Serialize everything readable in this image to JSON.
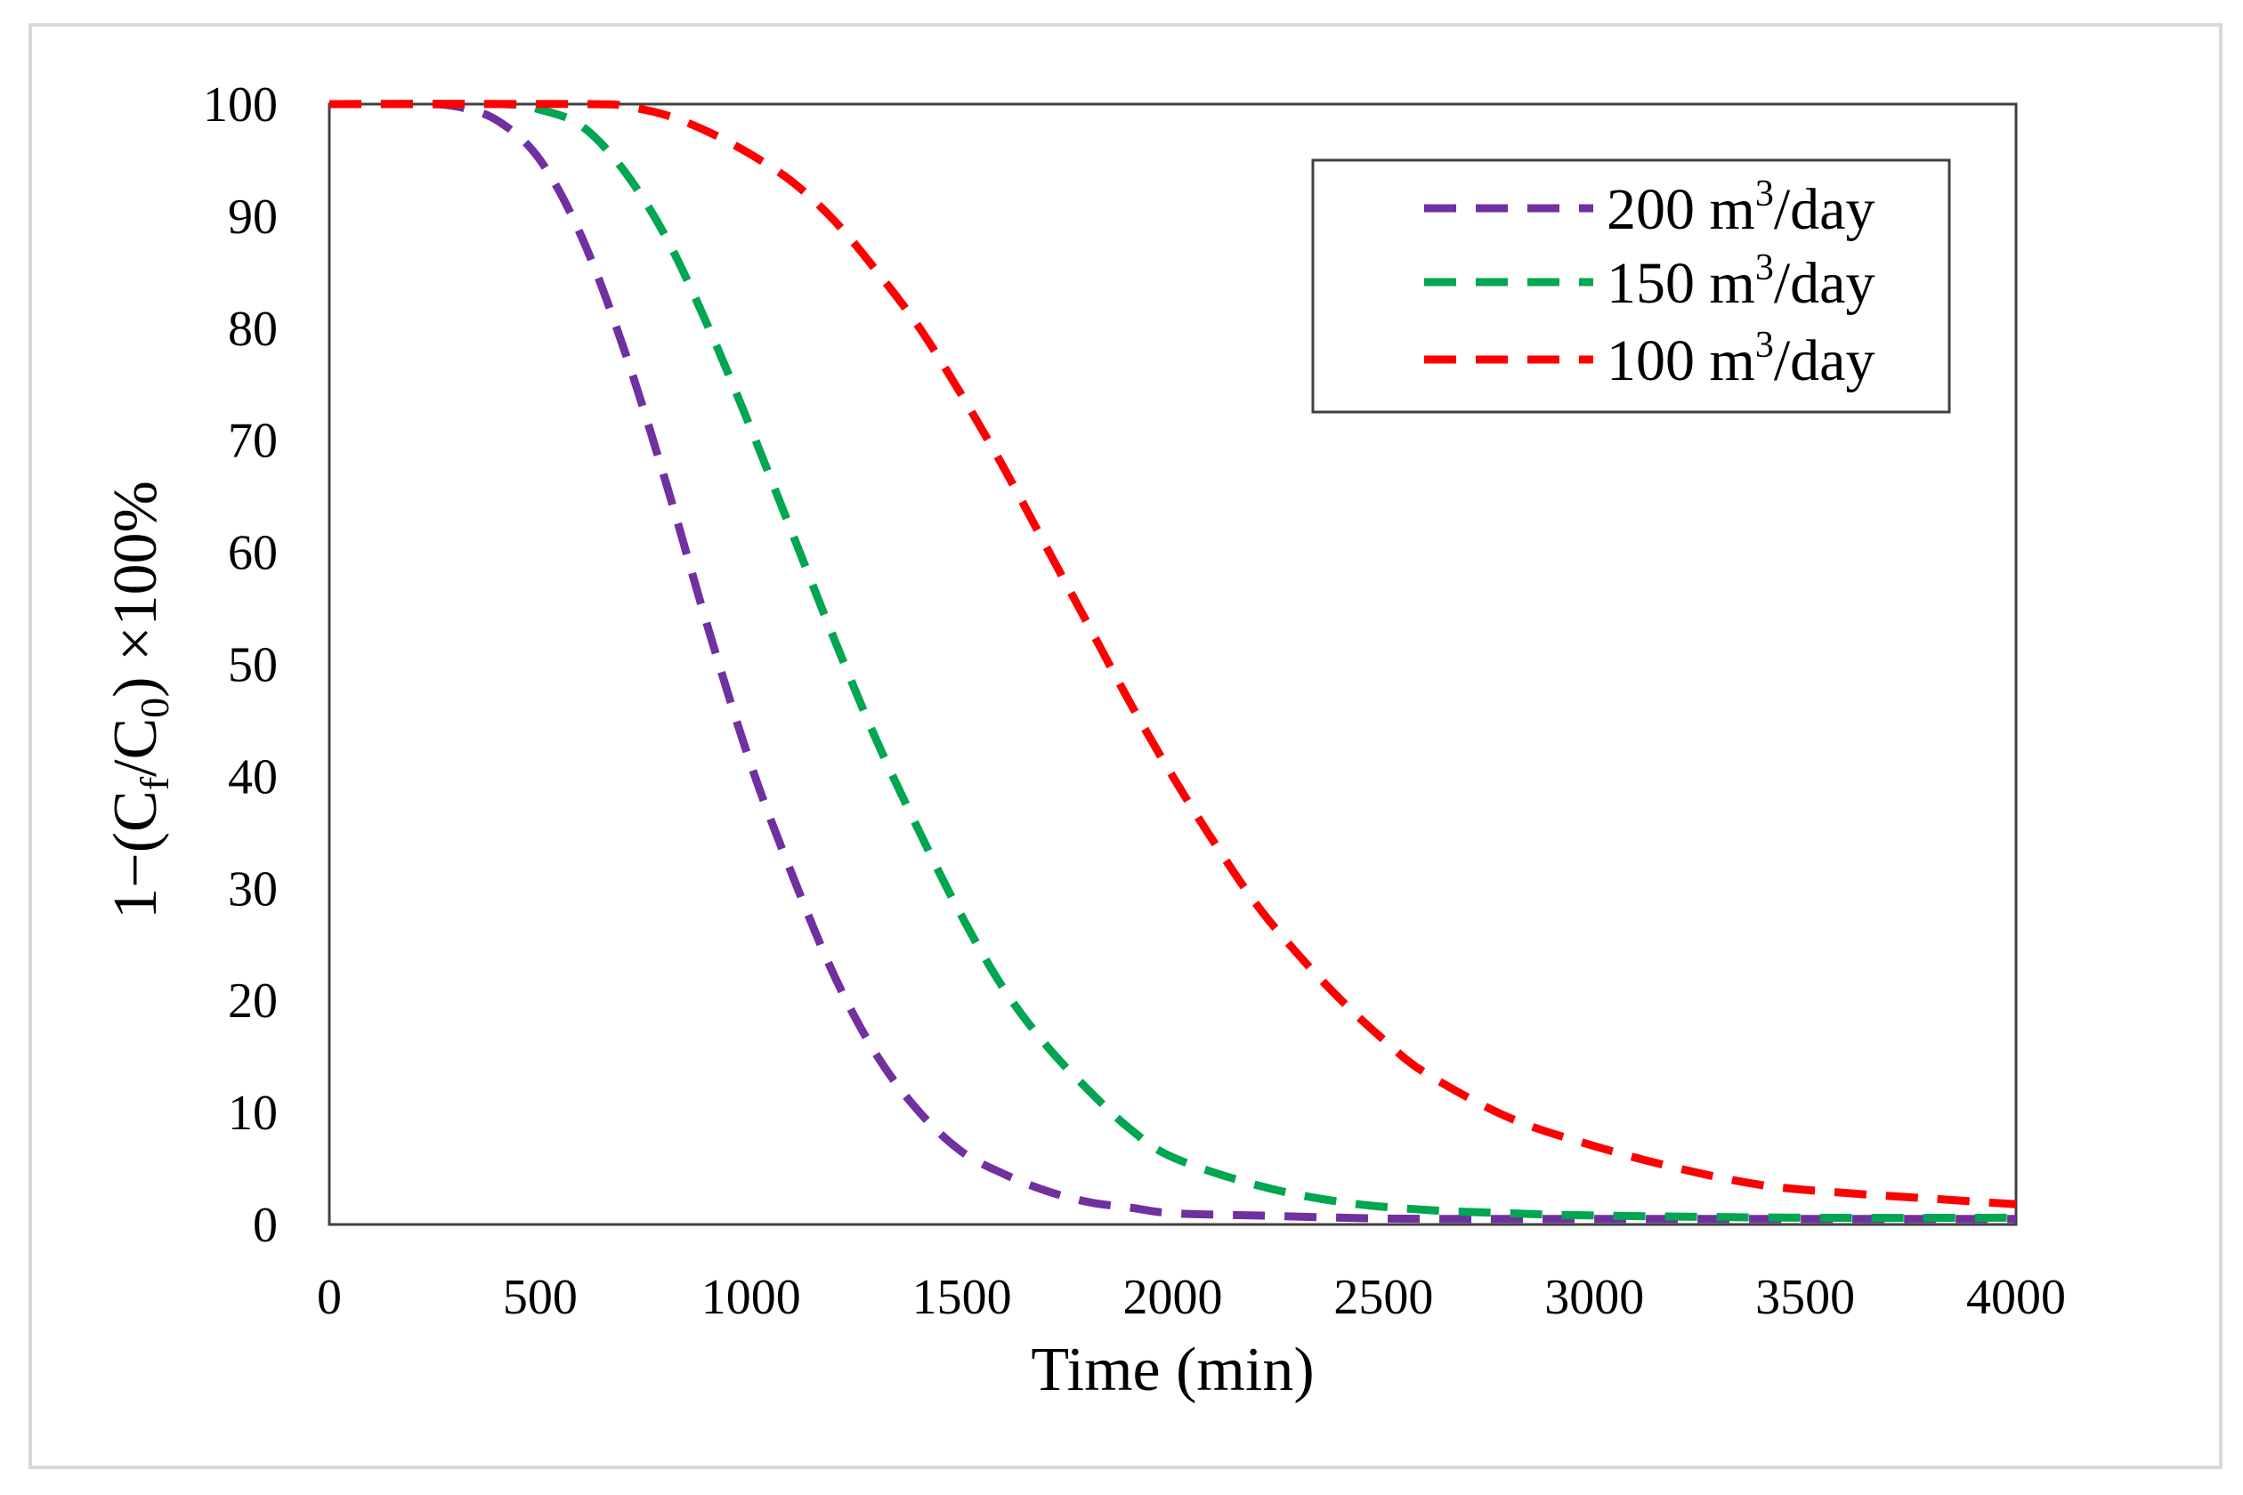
{
  "chart_data": {
    "type": "line",
    "title": "",
    "xlabel": "Time (min)",
    "ylabel": "1−(C_f/C_0) ×100%",
    "ylabel_parts": {
      "prefix": "1−(C",
      "sub1": "f",
      "mid": "/C",
      "sub2": "0",
      "suffix": ") ×100%"
    },
    "xlim": [
      0,
      4000
    ],
    "ylim": [
      0,
      100
    ],
    "xticks": [
      0,
      500,
      1000,
      1500,
      2000,
      2500,
      3000,
      3500,
      4000
    ],
    "yticks": [
      0,
      10,
      20,
      30,
      40,
      50,
      60,
      70,
      80,
      90,
      100
    ],
    "grid": false,
    "legend_position": "top-right",
    "series": [
      {
        "name": "200 m3/day",
        "label_value": "200 m",
        "label_sup": "3",
        "label_unit": "/day",
        "color": "#7030a0",
        "line_style": "dashed",
        "x": [
          0,
          200,
          300,
          400,
          500,
          600,
          700,
          800,
          900,
          1000,
          1100,
          1200,
          1300,
          1400,
          1500,
          1600,
          1700,
          1800,
          1900,
          2000,
          2200,
          2400,
          2600,
          3000,
          3500,
          4000
        ],
        "y": [
          100,
          100,
          99.8,
          98.5,
          95,
          88,
          78,
          66,
          53,
          41,
          31,
          22,
          15,
          10,
          6.5,
          4.5,
          3,
          2,
          1.5,
          1,
          0.8,
          0.6,
          0.5,
          0.5,
          0.5,
          0.5
        ]
      },
      {
        "name": "150 m3/day",
        "label_value": "150 m",
        "label_sup": "3",
        "label_unit": "/day",
        "color": "#00a650",
        "line_style": "dashed",
        "x": [
          0,
          400,
          500,
          600,
          700,
          800,
          900,
          1000,
          1100,
          1200,
          1300,
          1400,
          1500,
          1600,
          1700,
          1800,
          1900,
          2000,
          2200,
          2400,
          2600,
          2800,
          3000,
          3500,
          4000
        ],
        "y": [
          100,
          100,
          99.5,
          98,
          94,
          88,
          80,
          71,
          61.5,
          52,
          43,
          35,
          27.5,
          21,
          16,
          12,
          8.5,
          6,
          3.5,
          2,
          1.3,
          1,
          0.8,
          0.6,
          0.6
        ]
      },
      {
        "name": "100 m3/day",
        "label_value": "100 m",
        "label_sup": "3",
        "label_unit": "/day",
        "color": "#ff0000",
        "line_style": "dashed",
        "x": [
          0,
          600,
          700,
          800,
          900,
          1000,
          1100,
          1200,
          1300,
          1400,
          1500,
          1600,
          1700,
          1800,
          1900,
          2000,
          2100,
          2200,
          2300,
          2400,
          2500,
          2600,
          2800,
          3000,
          3200,
          3400,
          3600,
          3800,
          4000
        ],
        "y": [
          100,
          100,
          99.8,
          99,
          97.5,
          95.5,
          93,
          89.5,
          85,
          80,
          74,
          67.5,
          60.5,
          53.5,
          46.5,
          40,
          34,
          28.5,
          24,
          20,
          16.5,
          13.5,
          9.5,
          7,
          5,
          3.5,
          2.8,
          2.3,
          1.8
        ]
      }
    ]
  }
}
